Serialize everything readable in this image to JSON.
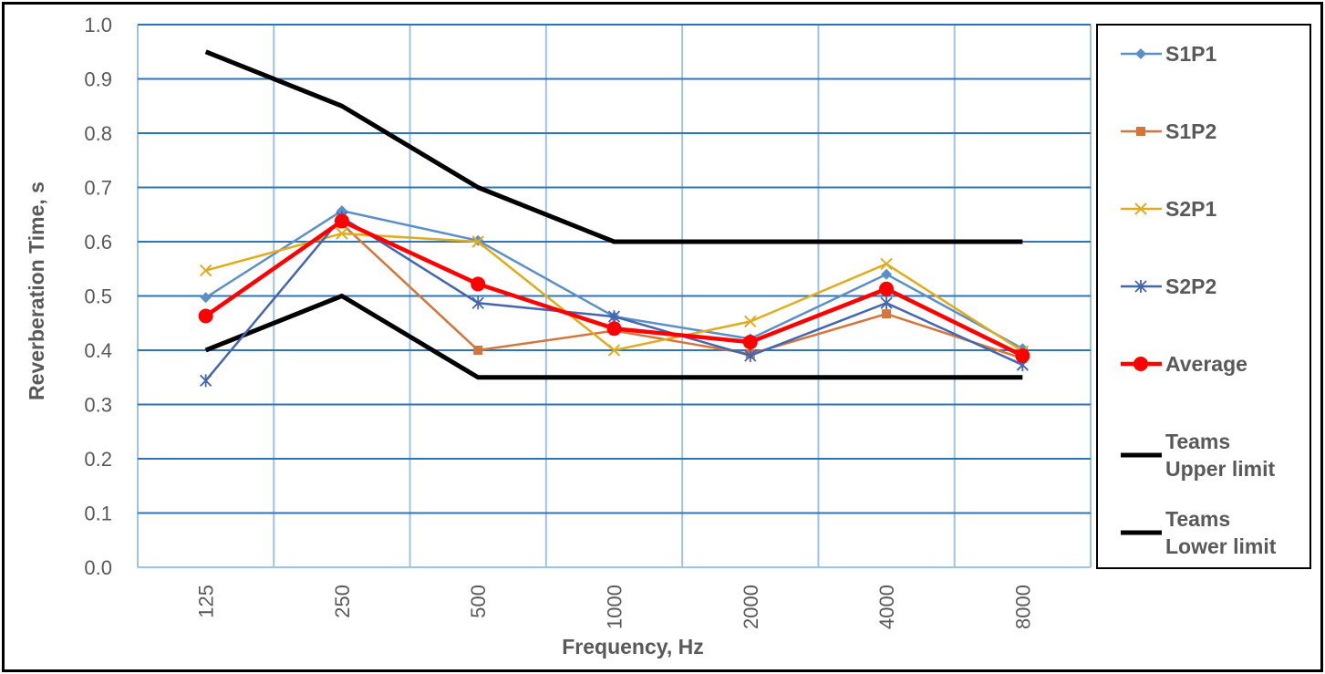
{
  "chart_data": {
    "type": "line",
    "title": "",
    "xlabel": "Frequency, Hz",
    "ylabel": "Reverberation Time, s",
    "categories": [
      "125",
      "250",
      "500",
      "1000",
      "2000",
      "4000",
      "8000"
    ],
    "ylim": [
      0,
      1.0
    ],
    "y_ticks": [
      "0.0",
      "0.1",
      "0.2",
      "0.3",
      "0.4",
      "0.5",
      "0.6",
      "0.7",
      "0.8",
      "0.9",
      "1.0"
    ],
    "grid": "on",
    "legend_position": "right",
    "series": [
      {
        "name": "S1P1",
        "color": "#5B8FC8",
        "marker": "diamond",
        "values": [
          0.497,
          0.657,
          0.602,
          0.462,
          0.421,
          0.54,
          0.403
        ]
      },
      {
        "name": "S1P2",
        "color": "#D4763B",
        "marker": "square",
        "values": [
          null,
          0.633,
          0.4,
          0.436,
          0.393,
          0.467,
          0.385
        ]
      },
      {
        "name": "S2P1",
        "color": "#E0AC1C",
        "marker": "x",
        "values": [
          0.547,
          0.615,
          0.6,
          0.4,
          0.453,
          0.559,
          0.398
        ]
      },
      {
        "name": "S2P2",
        "color": "#4466B0",
        "marker": "star",
        "values": [
          0.344,
          0.645,
          0.487,
          0.462,
          0.39,
          0.487,
          0.373
        ]
      },
      {
        "name": "Average",
        "color": "#FF0000",
        "marker": "circle",
        "values": [
          0.463,
          0.638,
          0.522,
          0.44,
          0.415,
          0.513,
          0.39
        ]
      },
      {
        "name": "Teams Upper limit",
        "legend_lines": [
          "Teams",
          "Upper limit"
        ],
        "color": "#000000",
        "marker": "none",
        "values": [
          0.95,
          0.85,
          0.7,
          0.6,
          0.6,
          0.6,
          0.6
        ]
      },
      {
        "name": "Teams Lower limit",
        "legend_lines": [
          "Teams",
          "Lower limit"
        ],
        "color": "#000000",
        "marker": "none",
        "values": [
          0.4,
          0.5,
          0.35,
          0.35,
          0.35,
          0.35,
          0.35
        ]
      }
    ]
  }
}
